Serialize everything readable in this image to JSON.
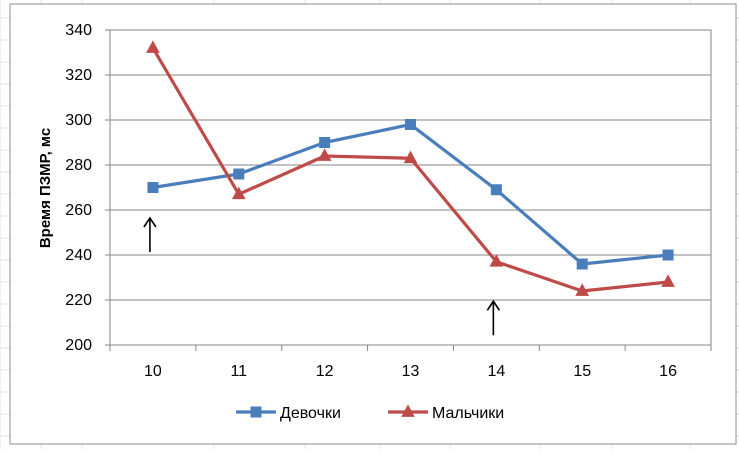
{
  "chart_data": {
    "type": "line",
    "ylabel": "Время ПЗМР, мс",
    "xlabel": "",
    "title": "",
    "categories": [
      "10",
      "11",
      "12",
      "13",
      "14",
      "15",
      "16"
    ],
    "ylim": [
      200,
      340
    ],
    "yticks": [
      200,
      220,
      240,
      260,
      280,
      300,
      320,
      340
    ],
    "grid": true,
    "legend_position": "bottom",
    "series": [
      {
        "name": "Девочки",
        "marker": "square",
        "color": "#4a7ebb",
        "values": [
          270,
          276,
          290,
          298,
          269,
          236,
          240
        ]
      },
      {
        "name": "Мальчики",
        "marker": "triangle",
        "color": "#be4b48",
        "values": [
          332,
          267,
          284,
          283,
          237,
          224,
          228
        ]
      }
    ],
    "annotations": [
      {
        "type": "arrow-up",
        "x": "10",
        "y": 252
      },
      {
        "type": "arrow-up",
        "x": "14",
        "y": 215
      }
    ]
  }
}
